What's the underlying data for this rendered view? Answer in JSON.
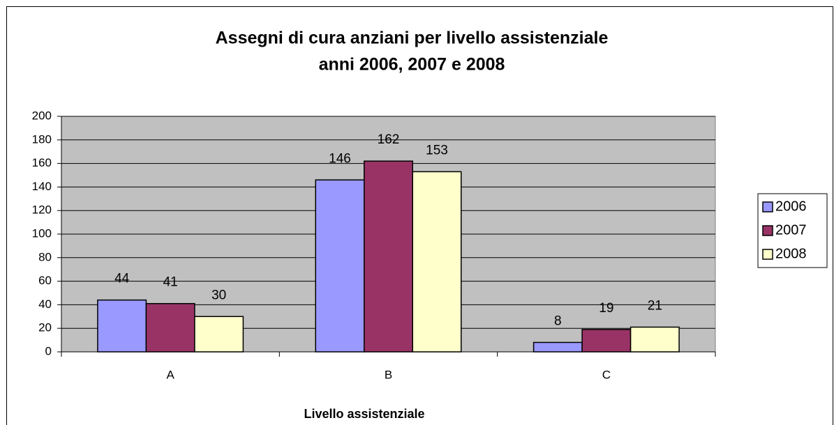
{
  "chart_data": {
    "type": "bar",
    "title": "Assegni di cura anziani per livello assistenziale",
    "subtitle": "anni 2006, 2007 e 2008",
    "x_label": "Livello assistenziale",
    "categories": [
      "A",
      "B",
      "C"
    ],
    "series": [
      {
        "name": "2006",
        "color": "#9999ff",
        "values": [
          44,
          146,
          8
        ]
      },
      {
        "name": "2007",
        "color": "#993366",
        "values": [
          41,
          162,
          19
        ]
      },
      {
        "name": "2008",
        "color": "#ffffcc",
        "values": [
          30,
          153,
          21
        ]
      }
    ],
    "ylim": [
      0,
      200
    ],
    "yticks": [
      0,
      20,
      40,
      60,
      80,
      100,
      120,
      140,
      160,
      180,
      200
    ],
    "grid": true,
    "legend": "right",
    "plot_background": "#c0c0c0"
  }
}
